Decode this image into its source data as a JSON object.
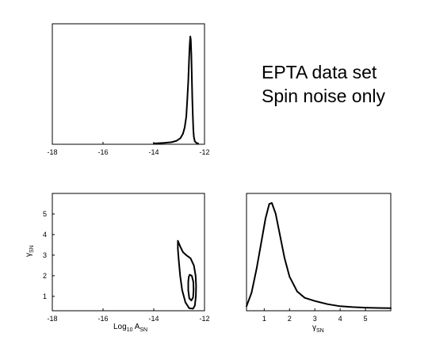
{
  "chart_data": [
    {
      "type": "line",
      "panel": "top-left",
      "title": "",
      "xlabel": "",
      "ylabel": "",
      "xlim": [
        -18,
        -12
      ],
      "xticks": [
        "-18",
        "-16",
        "-14",
        "-12"
      ],
      "series": [
        {
          "x": [
            -14.0,
            -13.6,
            -13.3,
            -13.1,
            -12.95,
            -12.85,
            -12.78,
            -12.72,
            -12.68,
            -12.64,
            -12.61,
            -12.58,
            -12.56,
            -12.54,
            -12.52,
            -12.5,
            -12.48,
            -12.46,
            -12.44,
            -12.42,
            -12.38,
            -12.32,
            -12.25
          ],
          "y": [
            0.0,
            0.005,
            0.012,
            0.025,
            0.05,
            0.09,
            0.15,
            0.25,
            0.4,
            0.58,
            0.78,
            0.93,
            1.0,
            0.97,
            0.83,
            0.62,
            0.42,
            0.25,
            0.13,
            0.06,
            0.02,
            0.005,
            0.0
          ]
        }
      ]
    },
    {
      "type": "contour",
      "panel": "bottom-left",
      "xlabel": "Log",
      "xlabel_sub1": "10",
      "xlabel_mid": " A",
      "xlabel_sub2": "SN",
      "ylabel": "γ",
      "ylabel_sub": "SN",
      "xlim": [
        -18,
        -12
      ],
      "ylim": [
        0.3,
        6
      ],
      "xticks": [
        "-18",
        "-16",
        "-14",
        "-12"
      ],
      "yticks": [
        "1",
        "2",
        "3",
        "4",
        "5"
      ],
      "contours": [
        {
          "level": "outer",
          "x": [
            -13.05,
            -12.95,
            -12.85,
            -12.72,
            -12.55,
            -12.42,
            -12.35,
            -12.33,
            -12.34,
            -12.38,
            -12.45,
            -12.6,
            -12.75,
            -12.88,
            -12.96,
            -13.02,
            -13.05,
            -13.05
          ],
          "y": [
            3.7,
            3.4,
            3.15,
            3.0,
            2.85,
            2.5,
            2.0,
            1.5,
            1.0,
            0.55,
            0.4,
            0.42,
            0.7,
            1.3,
            2.0,
            2.8,
            3.3,
            3.7
          ]
        },
        {
          "level": "inner",
          "x": [
            -12.58,
            -12.5,
            -12.44,
            -12.43,
            -12.45,
            -12.52,
            -12.6,
            -12.64,
            -12.64,
            -12.62,
            -12.58
          ],
          "y": [
            2.05,
            2.0,
            1.7,
            1.3,
            0.95,
            0.8,
            0.9,
            1.3,
            1.7,
            1.95,
            2.05
          ]
        }
      ]
    },
    {
      "type": "line",
      "panel": "bottom-right",
      "xlabel": "γ",
      "xlabel_sub": "SN",
      "xlim": [
        0.3,
        6
      ],
      "xticks": [
        "1",
        "2",
        "3",
        "4",
        "5"
      ],
      "series": [
        {
          "x": [
            0.3,
            0.5,
            0.7,
            0.9,
            1.05,
            1.2,
            1.3,
            1.45,
            1.6,
            1.8,
            2.0,
            2.3,
            2.6,
            3.0,
            3.5,
            4.0,
            4.5,
            5.0,
            5.5,
            6.0
          ],
          "y": [
            0.02,
            0.15,
            0.38,
            0.65,
            0.85,
            0.99,
            1.0,
            0.9,
            0.72,
            0.48,
            0.3,
            0.16,
            0.1,
            0.07,
            0.04,
            0.02,
            0.012,
            0.007,
            0.004,
            0.002
          ]
        }
      ]
    }
  ],
  "annotation": {
    "line1": "EPTA data set",
    "line2": "Spin noise only"
  }
}
